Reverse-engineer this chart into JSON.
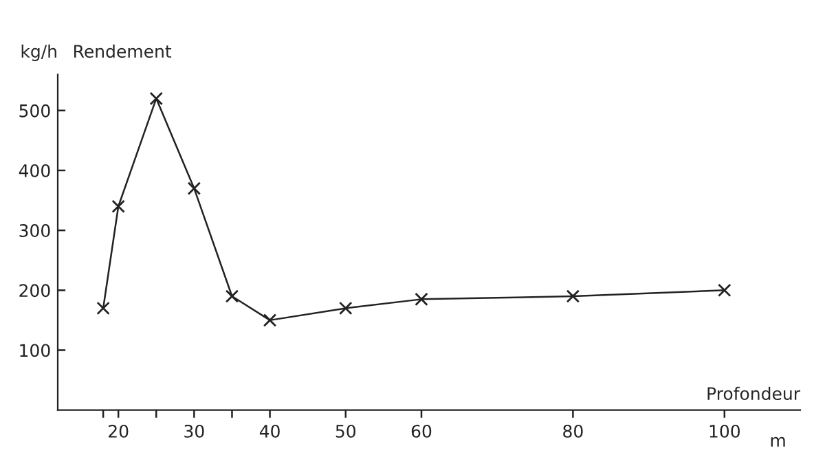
{
  "chart_data": {
    "type": "line",
    "title": "Rendement",
    "ylabel": "kg/h",
    "xlabel": "Profondeur",
    "annotations": [
      "m"
    ],
    "x": [
      18,
      20,
      25,
      30,
      35,
      40,
      50,
      60,
      80,
      100
    ],
    "series": [
      {
        "color": "#222222",
        "values": [
          170,
          340,
          520,
          370,
          190,
          150,
          170,
          185,
          190,
          200
        ]
      }
    ],
    "xlim": [
      12,
      110
    ],
    "ylim": [
      0,
      560
    ],
    "xticks": [
      {
        "value": 18,
        "label": null
      },
      20,
      {
        "value": 25,
        "label": null
      },
      30,
      {
        "value": 35,
        "label": null
      },
      40,
      50,
      60,
      80,
      100
    ],
    "yticks": [
      100,
      200,
      300,
      400,
      500
    ],
    "marker": "cross",
    "line_style": "solid",
    "grid": false,
    "legend": false
  }
}
